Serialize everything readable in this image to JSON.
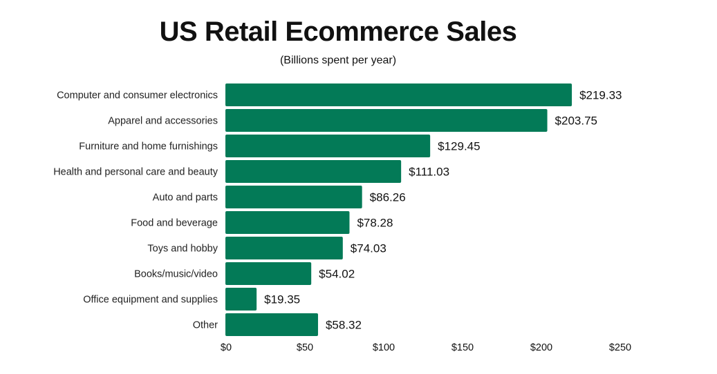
{
  "chart_data": {
    "type": "bar",
    "orientation": "horizontal",
    "title": "US Retail Ecommerce Sales",
    "subtitle": "(Billions spent per year)",
    "categories": [
      "Computer and consumer electronics",
      "Apparel and accessories",
      "Furniture and home furnishings",
      "Health and personal care and beauty",
      "Auto and parts",
      "Food and beverage",
      "Toys and hobby",
      "Books/music/video",
      "Office equipment and supplies",
      "Other"
    ],
    "values": [
      219.33,
      203.75,
      129.45,
      111.03,
      86.26,
      78.28,
      74.03,
      54.02,
      19.35,
      58.32
    ],
    "data_labels": [
      "$219.33",
      "$203.75",
      "$129.45",
      "$111.03",
      "$86.26",
      "$78.28",
      "$74.03",
      "$54.02",
      "$19.35",
      "$58.32"
    ],
    "xticks": [
      0,
      50,
      100,
      150,
      200,
      250
    ],
    "xtick_labels": [
      "$0",
      "$50",
      "$100",
      "$150",
      "$200",
      "$250"
    ],
    "xlim": [
      0,
      250
    ],
    "grid": false,
    "bar_color": "#037a57"
  }
}
